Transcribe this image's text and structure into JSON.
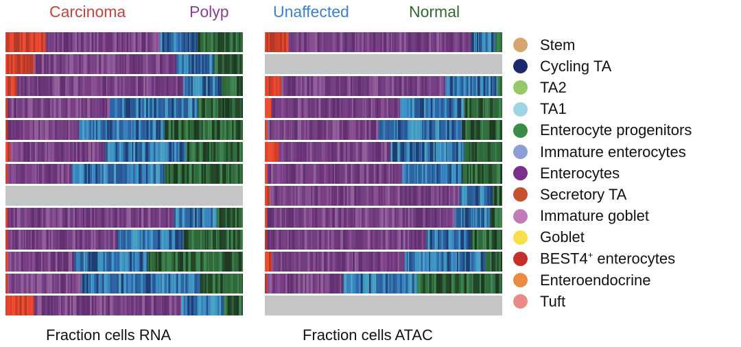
{
  "header": {
    "labels": [
      {
        "text": "Carcinoma",
        "color": "#c8413a"
      },
      {
        "text": "Polyp",
        "color": "#8a3f9a"
      },
      {
        "text": "Unaffected",
        "color": "#3a7fd5"
      },
      {
        "text": "Normal",
        "color": "#2e6b2c"
      }
    ]
  },
  "chart_data": [
    {
      "type": "bar",
      "orientation": "horizontal",
      "stacked": true,
      "title": "Fraction cells RNA",
      "xlabel": "Fraction cells RNA",
      "xlim": [
        0,
        1
      ],
      "groups": [
        "Carcinoma",
        "Polyp",
        "Unaffected",
        "Normal"
      ],
      "rows": [
        [
          0.17,
          0.48,
          0.16,
          0.19
        ],
        [
          0.12,
          0.6,
          0.16,
          0.12
        ],
        [
          0.05,
          0.7,
          0.16,
          0.09
        ],
        [
          0.01,
          0.43,
          0.37,
          0.19
        ],
        [
          0.01,
          0.3,
          0.36,
          0.33
        ],
        [
          0.02,
          0.4,
          0.34,
          0.24
        ],
        [
          0.01,
          0.27,
          0.39,
          0.33
        ],
        null,
        [
          0.01,
          0.7,
          0.18,
          0.11
        ],
        [
          0.01,
          0.46,
          0.28,
          0.25
        ],
        [
          0.01,
          0.28,
          0.31,
          0.4
        ],
        [
          0.01,
          0.31,
          0.5,
          0.18
        ],
        [
          0.12,
          0.62,
          0.18,
          0.08
        ]
      ]
    },
    {
      "type": "bar",
      "orientation": "horizontal",
      "stacked": true,
      "title": "Fraction cells ATAC",
      "xlabel": "Fraction cells ATAC",
      "xlim": [
        0,
        1
      ],
      "groups": [
        "Carcinoma",
        "Polyp",
        "Unaffected",
        "Normal"
      ],
      "rows": [
        [
          0.1,
          0.77,
          0.1,
          0.03
        ],
        null,
        [
          0.07,
          0.69,
          0.22,
          0.02
        ],
        [
          0.03,
          0.54,
          0.27,
          0.16
        ],
        [
          0.01,
          0.47,
          0.35,
          0.17
        ],
        [
          0.06,
          0.47,
          0.31,
          0.16
        ],
        [
          0.01,
          0.57,
          0.25,
          0.17
        ],
        [
          0.02,
          0.8,
          0.14,
          0.04
        ],
        [
          0.01,
          0.79,
          0.15,
          0.05
        ],
        [
          0.01,
          0.67,
          0.19,
          0.13
        ],
        [
          0.03,
          0.56,
          0.34,
          0.07
        ],
        [
          0.01,
          0.32,
          0.31,
          0.36
        ],
        null
      ]
    }
  ],
  "legend": {
    "items": [
      {
        "label": "Stem",
        "color": "#d6a56e"
      },
      {
        "label": "Cycling TA",
        "color": "#1c2a6b"
      },
      {
        "label": "TA2",
        "color": "#96c86a"
      },
      {
        "label": "TA1",
        "color": "#9fd4e2"
      },
      {
        "label": "Enterocyte progenitors",
        "color": "#3b8a47"
      },
      {
        "label": "Immature enterocytes",
        "color": "#8c9fd1"
      },
      {
        "label": "Enterocytes",
        "color": "#7b2f8c"
      },
      {
        "label": "Secretory TA",
        "color": "#c4522f"
      },
      {
        "label": "Immature goblet",
        "color": "#c27ab8"
      },
      {
        "label": "Goblet",
        "color": "#f6e04a"
      },
      {
        "label": "BEST4",
        "sup": "+",
        "suffix": " enterocytes",
        "color": "#c42f2a"
      },
      {
        "label": "Enteroendocrine",
        "color": "#e98b45"
      },
      {
        "label": "Tuft",
        "color": "#e88a86"
      }
    ]
  }
}
